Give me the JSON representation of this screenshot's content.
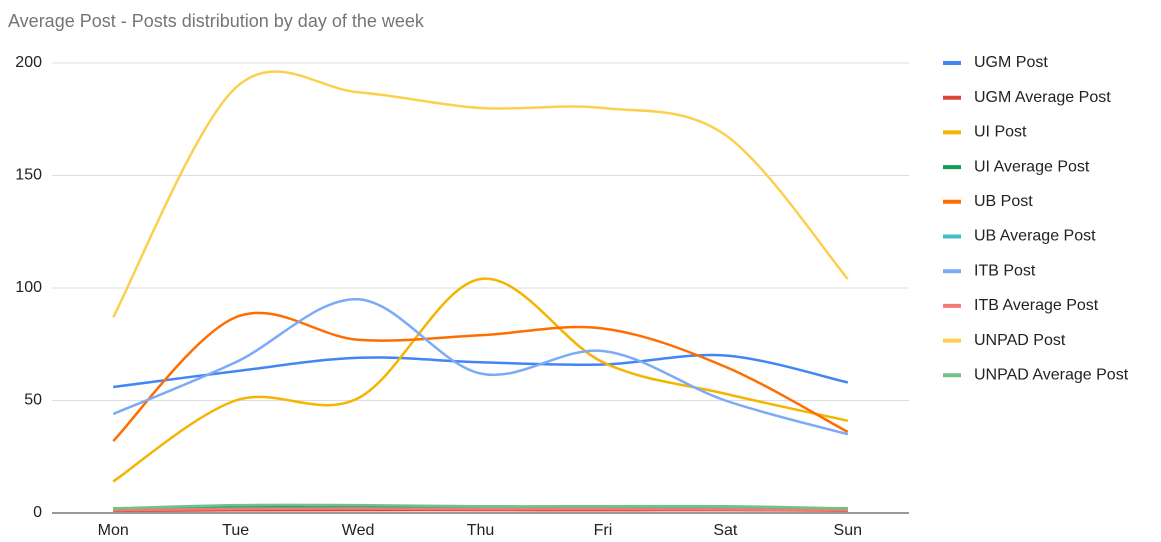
{
  "chart_data": {
    "type": "line",
    "title": "Average Post - Posts distribution by day of the week",
    "categories": [
      "Mon",
      "Tue",
      "Wed",
      "Thu",
      "Fri",
      "Sat",
      "Sun"
    ],
    "series": [
      {
        "name": "UGM Post",
        "color": "#4285f4",
        "values": [
          56,
          63,
          69,
          67,
          66,
          70,
          58
        ]
      },
      {
        "name": "UGM Average Post",
        "color": "#db4437",
        "values": [
          1,
          1.2,
          1.3,
          1.3,
          1.2,
          1.3,
          1
        ]
      },
      {
        "name": "UI Post",
        "color": "#f4b400",
        "values": [
          14,
          50,
          51,
          104,
          67,
          53,
          41
        ]
      },
      {
        "name": "UI Average Post",
        "color": "#0f9d58",
        "values": [
          2,
          2.5,
          2.5,
          2.5,
          2.5,
          2.5,
          2
        ]
      },
      {
        "name": "UB Post",
        "color": "#ff6d01",
        "values": [
          32,
          87,
          77,
          79,
          82,
          65,
          36
        ]
      },
      {
        "name": "UB Average Post",
        "color": "#46bdc6",
        "values": [
          1.5,
          2,
          2,
          2,
          2,
          2,
          1.5
        ]
      },
      {
        "name": "ITB Post",
        "color": "#7baaf7",
        "values": [
          44,
          67,
          95,
          62,
          72,
          50,
          35
        ]
      },
      {
        "name": "ITB Average Post",
        "color": "#f07b72",
        "values": [
          1.2,
          1.8,
          2,
          1.7,
          1.8,
          1.6,
          1.2
        ]
      },
      {
        "name": "UNPAD Post",
        "color": "#fcd04f",
        "values": [
          87,
          189,
          187,
          180,
          180,
          168,
          104
        ]
      },
      {
        "name": "UNPAD Average Post",
        "color": "#71c287",
        "values": [
          2,
          3.5,
          3.5,
          3,
          3,
          3,
          2
        ]
      }
    ],
    "ylim": [
      0,
      200
    ],
    "yticks": [
      0,
      50,
      100,
      150,
      200
    ],
    "grid": true,
    "legend": "right"
  }
}
